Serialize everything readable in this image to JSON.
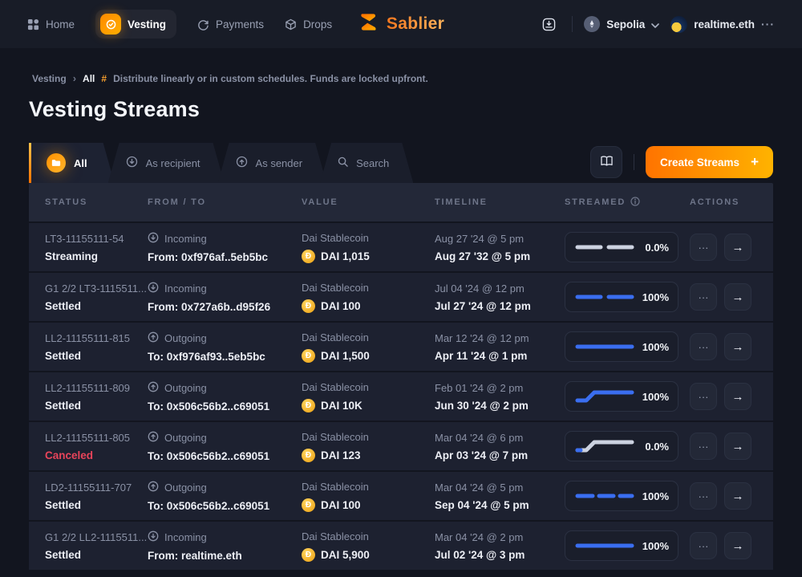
{
  "topnav": {
    "items": [
      {
        "label": "Home"
      },
      {
        "label": "Vesting"
      },
      {
        "label": "Payments"
      },
      {
        "label": "Drops"
      }
    ],
    "brand": "Sablier",
    "network": "Sepolia",
    "account": "realtime.eth",
    "account_menu": "···"
  },
  "breadcrumb": {
    "root": "Vesting",
    "separator": "›",
    "current": "All",
    "hash": "#",
    "description": "Distribute linearly or in custom schedules. Funds are locked upfront."
  },
  "page_title": "Vesting Streams",
  "tabs": [
    {
      "label": "All",
      "active": true
    },
    {
      "label": "As recipient",
      "active": false
    },
    {
      "label": "As sender",
      "active": false
    },
    {
      "label": "Search",
      "active": false
    }
  ],
  "toolbar": {
    "create_label": "Create Streams",
    "create_plus": "+"
  },
  "icons": {
    "dai": "Đ",
    "more": "···",
    "open": "→"
  },
  "colors": {
    "accent_orange": "#ff8c00",
    "progress_blue": "#3a6ef0",
    "progress_light": "#ccd2e0",
    "canceled_red": "#e8445a"
  },
  "table": {
    "headers": [
      "STATUS",
      "FROM / TO",
      "VALUE",
      "TIMELINE",
      "STREAMED",
      "ACTIONS"
    ],
    "rows": [
      {
        "id": "LT3-11155111-54",
        "status": "Streaming",
        "canceled": false,
        "direction": "Incoming",
        "counterparty": "From: 0xf976af..5eb5bc",
        "token": "Dai Stablecoin",
        "amount": "DAI 1,015",
        "start": "Aug 27 '24 @ 5 pm",
        "end": "Aug 27 '32 @ 5 pm",
        "pct": "0.0%",
        "spark": {
          "shape": "dashes2",
          "color": "light",
          "blue_start": false
        }
      },
      {
        "id": "G1 2/2 LT3-1115511...",
        "status": "Settled",
        "canceled": false,
        "direction": "Incoming",
        "counterparty": "From: 0x727a6b..d95f26",
        "token": "Dai Stablecoin",
        "amount": "DAI 100",
        "start": "Jul 04 '24 @ 12 pm",
        "end": "Jul 27 '24 @ 12 pm",
        "pct": "100%",
        "spark": {
          "shape": "dashes2",
          "color": "blue",
          "blue_start": false
        }
      },
      {
        "id": "LL2-11155111-815",
        "status": "Settled",
        "canceled": false,
        "direction": "Outgoing",
        "counterparty": "To: 0xf976af93..5eb5bc",
        "token": "Dai Stablecoin",
        "amount": "DAI 1,500",
        "start": "Mar 12 '24 @ 12 pm",
        "end": "Apr 11 '24 @ 1 pm",
        "pct": "100%",
        "spark": {
          "shape": "solid",
          "color": "blue",
          "blue_start": false
        }
      },
      {
        "id": "LL2-11155111-809",
        "status": "Settled",
        "canceled": false,
        "direction": "Outgoing",
        "counterparty": "To: 0x506c56b2..c69051",
        "token": "Dai Stablecoin",
        "amount": "DAI 10K",
        "start": "Feb 01 '24 @ 2 pm",
        "end": "Jun 30 '24 @ 2 pm",
        "pct": "100%",
        "spark": {
          "shape": "cliff",
          "color": "blue",
          "blue_start": false
        }
      },
      {
        "id": "LL2-11155111-805",
        "status": "Canceled",
        "canceled": true,
        "direction": "Outgoing",
        "counterparty": "To: 0x506c56b2..c69051",
        "token": "Dai Stablecoin",
        "amount": "DAI 123",
        "start": "Mar 04 '24 @ 6 pm",
        "end": "Apr 03 '24 @ 7 pm",
        "pct": "0.0%",
        "spark": {
          "shape": "cliff",
          "color": "light",
          "blue_start": true
        }
      },
      {
        "id": "LD2-11155111-707",
        "status": "Settled",
        "canceled": false,
        "direction": "Outgoing",
        "counterparty": "To: 0x506c56b2..c69051",
        "token": "Dai Stablecoin",
        "amount": "DAI 100",
        "start": "Mar 04 '24 @ 5 pm",
        "end": "Sep 04 '24 @ 5 pm",
        "pct": "100%",
        "spark": {
          "shape": "dashes3",
          "color": "blue",
          "blue_start": false
        }
      },
      {
        "id": "G1 2/2 LL2-1115511...",
        "status": "Settled",
        "canceled": false,
        "direction": "Incoming",
        "counterparty": "From: realtime.eth",
        "token": "Dai Stablecoin",
        "amount": "DAI 5,900",
        "start": "Mar 04 '24 @ 2 pm",
        "end": "Jul 02 '24 @ 3 pm",
        "pct": "100%",
        "spark": {
          "shape": "solid",
          "color": "blue",
          "blue_start": false
        }
      }
    ]
  }
}
